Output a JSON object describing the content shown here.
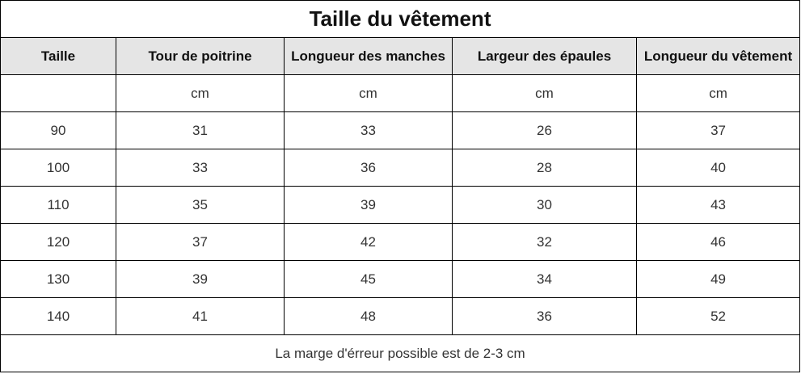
{
  "table": {
    "title": "Taille du vêtement",
    "headers": [
      "Taille",
      "Tour de poitrine",
      "Longueur des manches",
      "Largeur des épaules",
      "Longueur du vêtement"
    ],
    "units": [
      "",
      "cm",
      "cm",
      "cm",
      "cm"
    ],
    "rows": [
      [
        "90",
        "31",
        "33",
        "26",
        "37"
      ],
      [
        "100",
        "33",
        "36",
        "28",
        "40"
      ],
      [
        "110",
        "35",
        "39",
        "30",
        "43"
      ],
      [
        "120",
        "37",
        "42",
        "32",
        "46"
      ],
      [
        "130",
        "39",
        "45",
        "34",
        "49"
      ],
      [
        "140",
        "41",
        "48",
        "36",
        "52"
      ]
    ],
    "footer": "La marge d'érreur possible est de 2-3 cm"
  },
  "colors": {
    "header_background": "#e5e5e5",
    "border": "#000000",
    "text": "#333333"
  }
}
